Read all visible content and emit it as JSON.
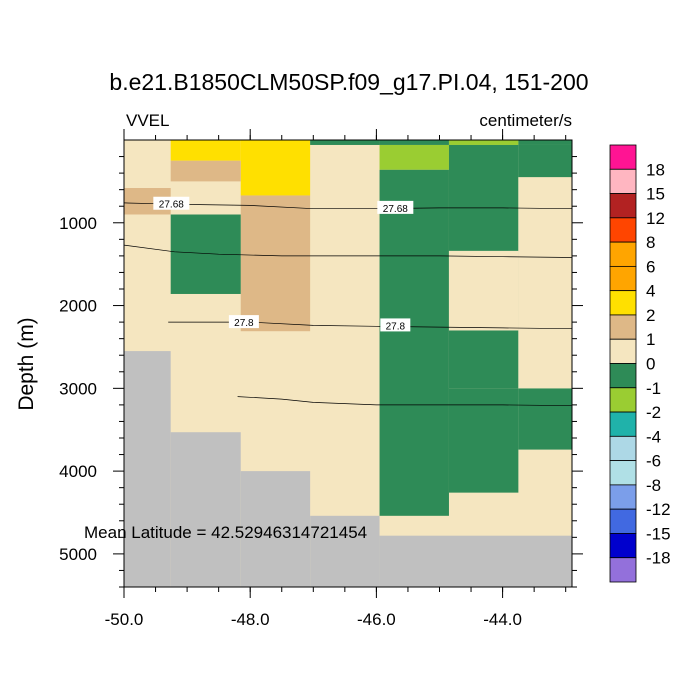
{
  "title": "b.e21.B1850CLM50SP.f09_g17.PI.04, 151-200",
  "variable": "VVEL",
  "units": "centimeter/s",
  "annotation": "Mean Latitude = 42.52946314721454",
  "chart_data": {
    "type": "heatmap",
    "title": "b.e21.B1850CLM50SP.f09_g17.PI.04, 151-200",
    "xlabel": "",
    "ylabel": "Depth (m)",
    "xlim": [
      -50.0,
      -42.9
    ],
    "ylim": [
      5400,
      0
    ],
    "y_inverted": true,
    "x_ticks": [
      -50.0,
      -48.0,
      -46.0,
      -44.0
    ],
    "x_tick_labels": [
      "-50.0",
      "-48.0",
      "-46.0",
      "-44.0"
    ],
    "y_ticks": [
      1000,
      2000,
      3000,
      4000,
      5000
    ],
    "y_tick_labels": [
      "1000",
      "2000",
      "3000",
      "4000",
      "5000"
    ],
    "colorbar": {
      "labels": [
        "18",
        "15",
        "12",
        "8",
        "6",
        "4",
        "2",
        "1",
        "0",
        "-1",
        "-2",
        "-4",
        "-6",
        "-8",
        "-12",
        "-15",
        "-18"
      ],
      "colors": [
        "#ff1493",
        "#ffb6c1",
        "#b22222",
        "#ff4500",
        "#ffa500",
        "#ffa500",
        "#ffe000",
        "#deb887",
        "#f5e6c0",
        "#2e8b57",
        "#9acd32",
        "#20b2aa",
        "#add8e6",
        "#b0e0e6",
        "#7b9eea",
        "#4169e1",
        "#0000cd",
        "#9370db"
      ]
    },
    "land_color": "#c0c0c0",
    "cells": [
      {
        "x0": -50.0,
        "x1": -42.9,
        "y0": 0,
        "y1": 5400,
        "c": "#f5e6c0"
      },
      {
        "x0": -49.26,
        "x1": -48.15,
        "y0": 0,
        "y1": 250,
        "c": "#ffe000"
      },
      {
        "x0": -48.15,
        "x1": -47.05,
        "y0": 0,
        "y1": 670,
        "c": "#ffe000"
      },
      {
        "x0": -49.26,
        "x1": -48.15,
        "y0": 250,
        "y1": 500,
        "c": "#deb887"
      },
      {
        "x0": -48.15,
        "x1": -47.05,
        "y0": 670,
        "y1": 2310,
        "c": "#deb887"
      },
      {
        "x0": -50.0,
        "x1": -49.26,
        "y0": 580,
        "y1": 900,
        "c": "#deb887"
      },
      {
        "x0": -49.26,
        "x1": -48.15,
        "y0": 900,
        "y1": 1860,
        "c": "#2e8b57"
      },
      {
        "x0": -47.05,
        "x1": -45.95,
        "y0": 0,
        "y1": 60,
        "c": "#2e8b57"
      },
      {
        "x0": -45.95,
        "x1": -44.85,
        "y0": 0,
        "y1": 60,
        "c": "#2e8b57"
      },
      {
        "x0": -44.85,
        "x1": -43.75,
        "y0": 0,
        "y1": 60,
        "c": "#9acd32"
      },
      {
        "x0": -43.75,
        "x1": -42.9,
        "y0": 0,
        "y1": 60,
        "c": "#2e8b57"
      },
      {
        "x0": -45.95,
        "x1": -44.85,
        "y0": 60,
        "y1": 360,
        "c": "#9acd32"
      },
      {
        "x0": -45.95,
        "x1": -44.85,
        "y0": 360,
        "y1": 4540,
        "c": "#2e8b57"
      },
      {
        "x0": -44.85,
        "x1": -43.75,
        "y0": 60,
        "y1": 4260,
        "c": "#2e8b57"
      },
      {
        "x0": -43.75,
        "x1": -42.9,
        "y0": 60,
        "y1": 450,
        "c": "#2e8b57"
      },
      {
        "x0": -43.75,
        "x1": -42.9,
        "y0": 3000,
        "y1": 3740,
        "c": "#2e8b57"
      },
      {
        "x0": -43.75,
        "x1": -42.9,
        "y0": 450,
        "y1": 1340,
        "c": "#f5e6c0"
      },
      {
        "x0": -44.85,
        "x1": -43.75,
        "y0": 1340,
        "y1": 3000,
        "c": "#f5e6c0"
      },
      {
        "x0": -44.85,
        "x1": -43.75,
        "y0": 2300,
        "y1": 3000,
        "c": "#2e8b57"
      },
      {
        "x0": -44.85,
        "x1": -43.75,
        "y0": 1340,
        "y1": 2300,
        "c": "#f5e6c0"
      },
      {
        "x0": -43.75,
        "x1": -42.9,
        "y0": 1340,
        "y1": 3000,
        "c": "#f5e6c0"
      }
    ],
    "land": [
      {
        "x0": -50.0,
        "x1": -49.26,
        "y0": 2550,
        "y1": 5400
      },
      {
        "x0": -49.26,
        "x1": -48.15,
        "y0": 3530,
        "y1": 5400
      },
      {
        "x0": -48.15,
        "x1": -47.05,
        "y0": 4000,
        "y1": 5400
      },
      {
        "x0": -47.05,
        "x1": -45.95,
        "y0": 4540,
        "y1": 5400
      },
      {
        "x0": -45.95,
        "x1": -42.9,
        "y0": 4780,
        "y1": 5400
      }
    ],
    "contours": [
      {
        "label": "27.68",
        "label_positions": [
          [
            -49.25,
            770
          ],
          [
            -45.7,
            820
          ]
        ],
        "points": [
          [
            -50.0,
            760
          ],
          [
            -49.5,
            770
          ],
          [
            -48.8,
            780
          ],
          [
            -48.0,
            790
          ],
          [
            -47.0,
            830
          ],
          [
            -46.0,
            830
          ],
          [
            -45.0,
            820
          ],
          [
            -44.0,
            820
          ],
          [
            -42.9,
            830
          ]
        ]
      },
      {
        "label": "",
        "label_positions": [],
        "points": [
          [
            -50.0,
            1270
          ],
          [
            -49.2,
            1350
          ],
          [
            -48.5,
            1380
          ],
          [
            -47.5,
            1400
          ],
          [
            -46.0,
            1400
          ],
          [
            -45.0,
            1400
          ],
          [
            -44.0,
            1410
          ],
          [
            -42.9,
            1420
          ]
        ]
      },
      {
        "label": "27.8",
        "label_positions": [
          [
            -48.1,
            2200
          ],
          [
            -45.7,
            2240
          ]
        ],
        "points": [
          [
            -49.3,
            2200
          ],
          [
            -48.6,
            2200
          ],
          [
            -48.0,
            2200
          ],
          [
            -47.0,
            2240
          ],
          [
            -46.0,
            2250
          ],
          [
            -45.0,
            2260
          ],
          [
            -44.0,
            2270
          ],
          [
            -42.9,
            2280
          ]
        ]
      },
      {
        "label": "",
        "label_positions": [],
        "points": [
          [
            -48.2,
            3100
          ],
          [
            -47.5,
            3130
          ],
          [
            -47.0,
            3170
          ],
          [
            -46.0,
            3200
          ],
          [
            -45.0,
            3200
          ],
          [
            -44.0,
            3200
          ],
          [
            -42.9,
            3210
          ]
        ]
      }
    ]
  }
}
